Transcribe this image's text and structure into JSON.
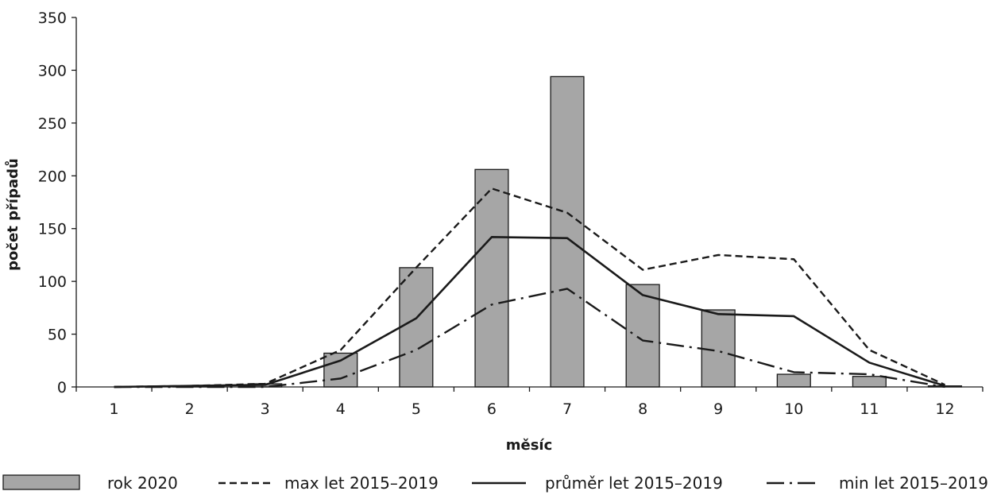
{
  "chart_data": {
    "type": "bar",
    "xlabel": "měsíc",
    "ylabel": "počet případů",
    "categories": [
      "1",
      "2",
      "3",
      "4",
      "5",
      "6",
      "7",
      "8",
      "9",
      "10",
      "11",
      "12"
    ],
    "ylim": [
      0,
      350
    ],
    "yticks": [
      "0",
      "50",
      "100",
      "150",
      "200",
      "250",
      "300",
      "350"
    ],
    "grid": false,
    "legend_position": "bottom",
    "series": [
      {
        "name": "rok 2020",
        "type": "bar",
        "style": "gray-bar",
        "color": "#a6a6a6",
        "values": [
          0,
          1,
          3,
          32,
          113,
          206,
          294,
          97,
          73,
          12,
          10,
          1
        ]
      },
      {
        "name": "max let 2015–2019",
        "type": "line",
        "style": "dashed",
        "color": "#1a1a1a",
        "values": [
          0,
          1,
          3,
          35,
          113,
          188,
          165,
          111,
          125,
          121,
          35,
          2
        ]
      },
      {
        "name": "průměr let 2015–2019",
        "type": "line",
        "style": "solid",
        "color": "#1a1a1a",
        "values": [
          0,
          1,
          2,
          25,
          65,
          142,
          141,
          87,
          69,
          67,
          23,
          1
        ]
      },
      {
        "name": "min let 2015–2019",
        "type": "line",
        "style": "dash-dot",
        "color": "#1a1a1a",
        "values": [
          0,
          0,
          0,
          8,
          35,
          78,
          93,
          44,
          34,
          14,
          12,
          0
        ]
      }
    ]
  }
}
